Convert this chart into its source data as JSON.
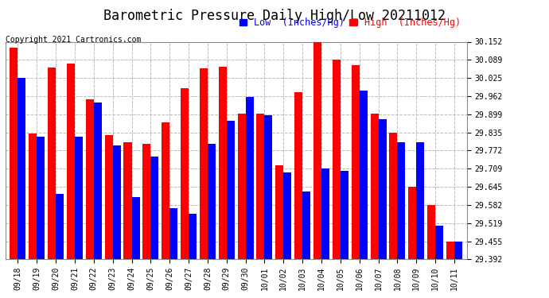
{
  "title": "Barometric Pressure Daily High/Low 20211012",
  "copyright": "Copyright 2021 Cartronics.com",
  "legend_low": "Low  (Inches/Hg)",
  "legend_high": "High  (Inches/Hg)",
  "categories": [
    "09/18",
    "09/19",
    "09/20",
    "09/21",
    "09/22",
    "09/23",
    "09/24",
    "09/25",
    "09/26",
    "09/27",
    "09/28",
    "09/29",
    "09/30",
    "10/01",
    "10/02",
    "10/03",
    "10/04",
    "10/05",
    "10/06",
    "10/07",
    "10/08",
    "10/09",
    "10/10",
    "10/11"
  ],
  "high_values": [
    30.13,
    29.83,
    30.062,
    30.075,
    29.95,
    29.825,
    29.8,
    29.795,
    29.87,
    29.99,
    30.06,
    30.065,
    29.9,
    29.9,
    29.72,
    29.975,
    30.152,
    30.09,
    30.07,
    29.9,
    29.835,
    29.645,
    29.582,
    29.455
  ],
  "low_values": [
    30.025,
    29.82,
    29.62,
    29.82,
    29.94,
    29.79,
    29.61,
    29.75,
    29.57,
    29.55,
    29.795,
    29.875,
    29.96,
    29.895,
    29.695,
    29.63,
    29.71,
    29.7,
    29.98,
    29.88,
    29.8,
    29.8,
    29.51,
    29.455
  ],
  "ylim_min": 29.392,
  "ylim_max": 30.152,
  "yticks": [
    29.392,
    29.455,
    29.519,
    29.582,
    29.645,
    29.709,
    29.772,
    29.835,
    29.899,
    29.962,
    30.025,
    30.089,
    30.152
  ],
  "color_high": "#ff0000",
  "color_low": "#0000ff",
  "color_grid": "#aaaaaa",
  "bg_color": "#ffffff",
  "title_fontsize": 12,
  "copyright_fontsize": 7,
  "legend_fontsize": 8.5,
  "tick_fontsize": 7,
  "bar_bottom": 29.392
}
